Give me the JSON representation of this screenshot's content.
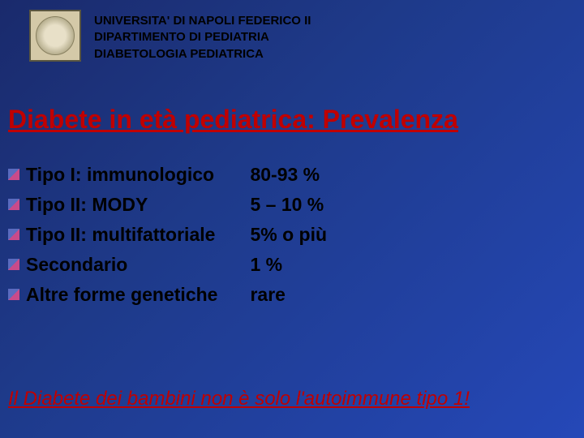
{
  "header": {
    "line1": "UNIVERSITA' DI NAPOLI FEDERICO II",
    "line2": "DIPARTIMENTO DI PEDIATRIA",
    "line3": "DIABETOLOGIA PEDIATRICA"
  },
  "title": "Diabete in età pediatrica: Prevalenza",
  "items": [
    {
      "label": "Tipo I: immunologico",
      "value": "80-93 %"
    },
    {
      "label": "Tipo II: MODY",
      "value": "5 – 10 %"
    },
    {
      "label": "Tipo II: multifattoriale",
      "value": "5% o più"
    },
    {
      "label": "Secondario",
      "value": "1 %"
    },
    {
      "label": "Altre forme genetiche",
      "value": "rare"
    }
  ],
  "footer": "Il Diabete dei bambini non è solo l'autoimmune tipo 1!",
  "colors": {
    "title_color": "#c00000",
    "text_color": "#000000",
    "bg_gradient_start": "#1a2a6c",
    "bg_gradient_end": "#2548b8",
    "bullet_color_a": "#5a6bbf",
    "bullet_color_b": "#c94a8a"
  },
  "typography": {
    "header_fontsize": 15,
    "title_fontsize": 32,
    "item_fontsize": 23,
    "footer_fontsize": 24,
    "font_family": "Comic Sans MS"
  }
}
